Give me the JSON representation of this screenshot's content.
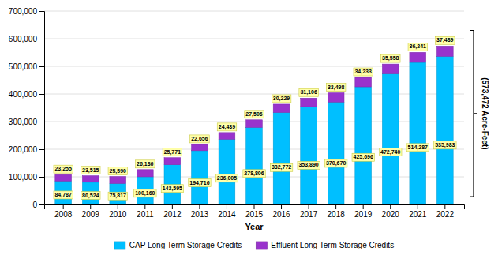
{
  "chart_data": {
    "type": "bar",
    "stacked": true,
    "categories": [
      "2008",
      "2009",
      "2010",
      "2011",
      "2012",
      "2013",
      "2014",
      "2015",
      "2016",
      "2017",
      "2018",
      "2019",
      "2020",
      "2021",
      "2022"
    ],
    "series": [
      {
        "name": "CAP Long Term Storage Credits",
        "color": "#00BFFF",
        "values": [
          84787,
          80524,
          75817,
          100160,
          143595,
          194716,
          236005,
          278806,
          332772,
          353890,
          370670,
          425696,
          472740,
          514287,
          535983
        ],
        "value_labels": [
          "84,787",
          "80,524",
          "75,817",
          "100,160",
          "143,595",
          "194,716",
          "236,005",
          "278,806",
          "332,772",
          "353,890",
          "370,670",
          "425,696",
          "472,740",
          "514,287",
          "535,983"
        ]
      },
      {
        "name": "Effluent Long Term Storage Credits",
        "color": "#9933CC",
        "values": [
          23255,
          23515,
          25590,
          26136,
          25771,
          22656,
          24439,
          27506,
          30229,
          31106,
          33498,
          34233,
          35558,
          36241,
          37489
        ],
        "value_labels": [
          "23,255",
          "23,515",
          "25,590",
          "26,136",
          "25,771",
          "22,656",
          "24,439",
          "27,506",
          "30,229",
          "31,106",
          "33,498",
          "34,233",
          "35,558",
          "36,241",
          "37,489"
        ]
      }
    ],
    "xlabel": "Year",
    "ylabel": "(573,472 Acre-Feet)",
    "ylim": [
      0,
      700000
    ],
    "yticks": [
      0,
      {
        "value": 100000,
        "label": "100,000"
      },
      {
        "value": 200000,
        "label": "200,000"
      },
      {
        "value": 300000,
        "label": "300,000"
      },
      {
        "value": 400000,
        "label": "400,000"
      },
      {
        "value": 500000,
        "label": "500,000"
      },
      {
        "value": 600000,
        "label": "600,000"
      },
      {
        "value": 700000,
        "label": "700,000"
      }
    ],
    "grid": true,
    "data_labels": true,
    "legend": "bottom"
  }
}
